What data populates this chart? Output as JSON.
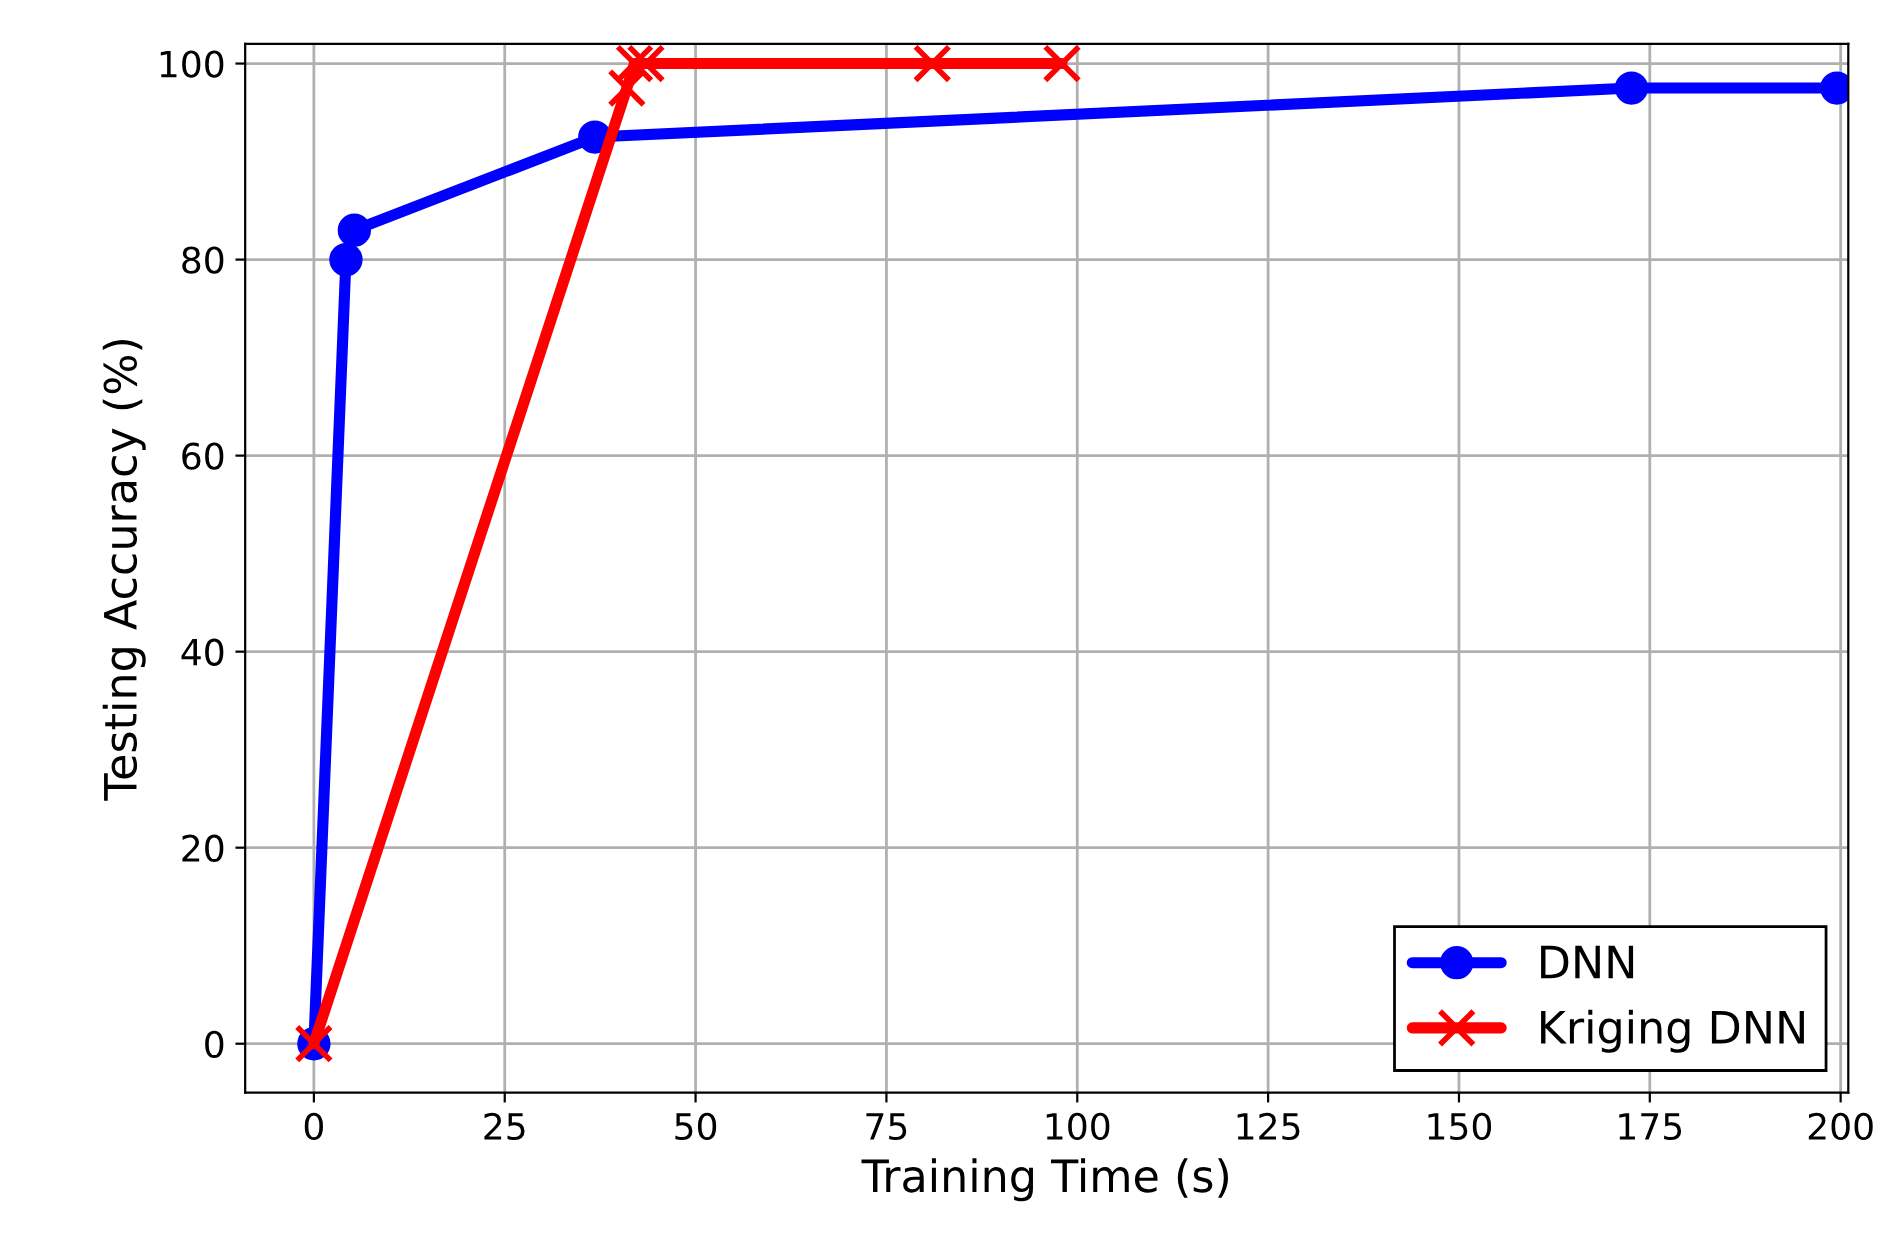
{
  "chart_data": {
    "type": "line",
    "xlabel": "Training Time (s)",
    "ylabel": "Testing Accuracy (%)",
    "xlim": [
      -9,
      201
    ],
    "ylim": [
      -5,
      102
    ],
    "xticks": [
      0,
      25,
      50,
      75,
      100,
      125,
      150,
      175,
      200
    ],
    "yticks": [
      0,
      20,
      40,
      60,
      80,
      100
    ],
    "grid": true,
    "legend": "bottom right",
    "series": [
      {
        "name": "DNN",
        "color": "#0000ff",
        "marker": "circle",
        "x": [
          0,
          4.2,
          5.3,
          36.8,
          172.6,
          199.5
        ],
        "values": [
          0,
          80,
          83,
          92.5,
          97.5,
          97.5
        ]
      },
      {
        "name": "Kriging DNN",
        "color": "#ff0000",
        "marker": "cross",
        "x": [
          0,
          41,
          42,
          43.5,
          81,
          98
        ],
        "values": [
          0,
          97.5,
          100,
          100,
          100,
          100
        ]
      }
    ]
  }
}
